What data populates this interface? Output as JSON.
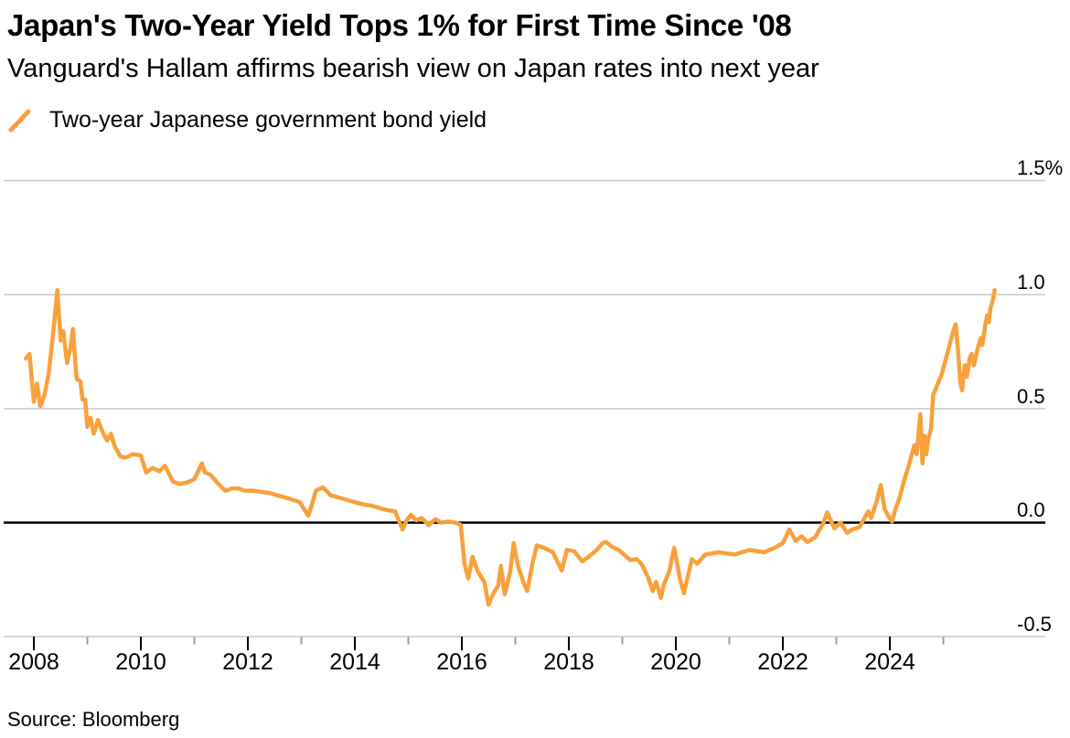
{
  "header": {
    "title": "Japan's Two-Year Yield Tops 1% for First Time Since '08",
    "subtitle": "Vanguard's Hallam affirms bearish view on Japan rates into next year"
  },
  "legend": {
    "label": "Two-year Japanese government bond yield",
    "swatch_icon": "diagonal-line-swatch-icon"
  },
  "source": "Source: Bloomberg",
  "colors": {
    "line": "#F8A13C",
    "grid": "#c9c9c9",
    "zero_line": "#000000",
    "major_tick": "#000000",
    "minor_tick": "#9b9b9b",
    "text": "#000000"
  },
  "chart_data": {
    "type": "line",
    "title": "Japan's Two-Year Yield Tops 1% for First Time Since '08",
    "subtitle": "Vanguard's Hallam affirms bearish view on Japan rates into next year",
    "series_name": "Two-year Japanese government bond yield",
    "unit": "%",
    "grid": "horizontal",
    "legend_position": "top-left",
    "x_range": [
      2007.8,
      2026.1
    ],
    "ylim": [
      -0.75,
      1.6
    ],
    "y_ticks": [
      {
        "value": 1.5,
        "label": "1.5%"
      },
      {
        "value": 1.0,
        "label": "1.0"
      },
      {
        "value": 0.5,
        "label": "0.5"
      },
      {
        "value": 0.0,
        "label": "0.0"
      },
      {
        "value": -0.5,
        "label": "-0.5"
      }
    ],
    "x_ticks_major": [
      {
        "year": 2008,
        "label": "2008"
      },
      {
        "year": 2010,
        "label": "2010"
      },
      {
        "year": 2012,
        "label": "2012"
      },
      {
        "year": 2014,
        "label": "2014"
      },
      {
        "year": 2016,
        "label": "2016"
      },
      {
        "year": 2018,
        "label": "2018"
      },
      {
        "year": 2020,
        "label": "2020"
      },
      {
        "year": 2022,
        "label": "2022"
      },
      {
        "year": 2024,
        "label": "2024"
      }
    ],
    "x_ticks_minor": [
      2009,
      2011,
      2013,
      2015,
      2017,
      2019,
      2021,
      2023,
      2025
    ],
    "zero_line": 0.0,
    "points": [
      [
        2007.85,
        0.72
      ],
      [
        2007.92,
        0.74
      ],
      [
        2008.0,
        0.53
      ],
      [
        2008.06,
        0.61
      ],
      [
        2008.12,
        0.51
      ],
      [
        2008.2,
        0.56
      ],
      [
        2008.28,
        0.66
      ],
      [
        2008.36,
        0.83
      ],
      [
        2008.44,
        1.02
      ],
      [
        2008.5,
        0.8
      ],
      [
        2008.55,
        0.84
      ],
      [
        2008.62,
        0.7
      ],
      [
        2008.68,
        0.76
      ],
      [
        2008.73,
        0.85
      ],
      [
        2008.8,
        0.63
      ],
      [
        2008.87,
        0.62
      ],
      [
        2008.91,
        0.54
      ],
      [
        2008.96,
        0.54
      ],
      [
        2009.0,
        0.42
      ],
      [
        2009.06,
        0.46
      ],
      [
        2009.12,
        0.39
      ],
      [
        2009.2,
        0.45
      ],
      [
        2009.28,
        0.4
      ],
      [
        2009.37,
        0.36
      ],
      [
        2009.44,
        0.39
      ],
      [
        2009.52,
        0.33
      ],
      [
        2009.62,
        0.29
      ],
      [
        2009.72,
        0.285
      ],
      [
        2009.85,
        0.3
      ],
      [
        2010.0,
        0.295
      ],
      [
        2010.1,
        0.22
      ],
      [
        2010.22,
        0.24
      ],
      [
        2010.35,
        0.225
      ],
      [
        2010.45,
        0.25
      ],
      [
        2010.6,
        0.18
      ],
      [
        2010.72,
        0.17
      ],
      [
        2010.85,
        0.175
      ],
      [
        2011.0,
        0.19
      ],
      [
        2011.08,
        0.23
      ],
      [
        2011.14,
        0.26
      ],
      [
        2011.2,
        0.22
      ],
      [
        2011.3,
        0.21
      ],
      [
        2011.45,
        0.17
      ],
      [
        2011.58,
        0.14
      ],
      [
        2011.7,
        0.15
      ],
      [
        2011.82,
        0.15
      ],
      [
        2011.95,
        0.14
      ],
      [
        2012.1,
        0.14
      ],
      [
        2012.25,
        0.135
      ],
      [
        2012.4,
        0.13
      ],
      [
        2012.55,
        0.12
      ],
      [
        2012.7,
        0.11
      ],
      [
        2012.85,
        0.1
      ],
      [
        2012.97,
        0.09
      ],
      [
        2013.05,
        0.06
      ],
      [
        2013.13,
        0.03
      ],
      [
        2013.2,
        0.08
      ],
      [
        2013.27,
        0.14
      ],
      [
        2013.4,
        0.155
      ],
      [
        2013.55,
        0.12
      ],
      [
        2013.7,
        0.11
      ],
      [
        2013.85,
        0.1
      ],
      [
        2014.0,
        0.09
      ],
      [
        2014.15,
        0.08
      ],
      [
        2014.3,
        0.075
      ],
      [
        2014.45,
        0.065
      ],
      [
        2014.6,
        0.055
      ],
      [
        2014.75,
        0.05
      ],
      [
        2014.82,
        0.01
      ],
      [
        2014.89,
        -0.03
      ],
      [
        2014.97,
        0.01
      ],
      [
        2015.05,
        0.035
      ],
      [
        2015.15,
        0.01
      ],
      [
        2015.25,
        0.02
      ],
      [
        2015.38,
        -0.01
      ],
      [
        2015.5,
        0.015
      ],
      [
        2015.62,
        0.0
      ],
      [
        2015.75,
        0.005
      ],
      [
        2015.88,
        0.0
      ],
      [
        2015.98,
        -0.01
      ],
      [
        2016.05,
        -0.18
      ],
      [
        2016.12,
        -0.245
      ],
      [
        2016.2,
        -0.15
      ],
      [
        2016.3,
        -0.215
      ],
      [
        2016.42,
        -0.26
      ],
      [
        2016.5,
        -0.36
      ],
      [
        2016.58,
        -0.315
      ],
      [
        2016.68,
        -0.275
      ],
      [
        2016.73,
        -0.19
      ],
      [
        2016.8,
        -0.315
      ],
      [
        2016.9,
        -0.22
      ],
      [
        2016.97,
        -0.09
      ],
      [
        2017.05,
        -0.19
      ],
      [
        2017.15,
        -0.26
      ],
      [
        2017.22,
        -0.3
      ],
      [
        2017.32,
        -0.18
      ],
      [
        2017.4,
        -0.1
      ],
      [
        2017.53,
        -0.11
      ],
      [
        2017.7,
        -0.13
      ],
      [
        2017.87,
        -0.21
      ],
      [
        2017.96,
        -0.12
      ],
      [
        2018.1,
        -0.125
      ],
      [
        2018.25,
        -0.17
      ],
      [
        2018.42,
        -0.14
      ],
      [
        2018.52,
        -0.12
      ],
      [
        2018.63,
        -0.09
      ],
      [
        2018.7,
        -0.085
      ],
      [
        2018.8,
        -0.105
      ],
      [
        2018.93,
        -0.12
      ],
      [
        2019.03,
        -0.14
      ],
      [
        2019.15,
        -0.165
      ],
      [
        2019.27,
        -0.16
      ],
      [
        2019.37,
        -0.185
      ],
      [
        2019.48,
        -0.24
      ],
      [
        2019.57,
        -0.3
      ],
      [
        2019.63,
        -0.26
      ],
      [
        2019.72,
        -0.33
      ],
      [
        2019.78,
        -0.27
      ],
      [
        2019.88,
        -0.21
      ],
      [
        2019.97,
        -0.11
      ],
      [
        2020.08,
        -0.25
      ],
      [
        2020.15,
        -0.31
      ],
      [
        2020.3,
        -0.16
      ],
      [
        2020.4,
        -0.18
      ],
      [
        2020.55,
        -0.14
      ],
      [
        2020.8,
        -0.13
      ],
      [
        2021.1,
        -0.14
      ],
      [
        2021.38,
        -0.12
      ],
      [
        2021.65,
        -0.13
      ],
      [
        2021.85,
        -0.11
      ],
      [
        2022.0,
        -0.09
      ],
      [
        2022.12,
        -0.03
      ],
      [
        2022.24,
        -0.08
      ],
      [
        2022.35,
        -0.06
      ],
      [
        2022.46,
        -0.085
      ],
      [
        2022.6,
        -0.065
      ],
      [
        2022.75,
        -0.005
      ],
      [
        2022.83,
        0.045
      ],
      [
        2022.96,
        -0.025
      ],
      [
        2023.08,
        0.0
      ],
      [
        2023.2,
        -0.045
      ],
      [
        2023.3,
        -0.03
      ],
      [
        2023.43,
        -0.02
      ],
      [
        2023.55,
        0.03
      ],
      [
        2023.6,
        0.05
      ],
      [
        2023.65,
        0.02
      ],
      [
        2023.75,
        0.09
      ],
      [
        2023.83,
        0.165
      ],
      [
        2023.9,
        0.06
      ],
      [
        2023.97,
        0.03
      ],
      [
        2024.04,
        0.005
      ],
      [
        2024.12,
        0.07
      ],
      [
        2024.17,
        0.1
      ],
      [
        2024.28,
        0.195
      ],
      [
        2024.34,
        0.24
      ],
      [
        2024.4,
        0.29
      ],
      [
        2024.46,
        0.34
      ],
      [
        2024.5,
        0.3
      ],
      [
        2024.57,
        0.475
      ],
      [
        2024.61,
        0.26
      ],
      [
        2024.65,
        0.38
      ],
      [
        2024.68,
        0.3
      ],
      [
        2024.72,
        0.37
      ],
      [
        2024.77,
        0.41
      ],
      [
        2024.81,
        0.56
      ],
      [
        2024.88,
        0.6
      ],
      [
        2024.97,
        0.65
      ],
      [
        2025.05,
        0.72
      ],
      [
        2025.14,
        0.8
      ],
      [
        2025.19,
        0.845
      ],
      [
        2025.23,
        0.87
      ],
      [
        2025.28,
        0.74
      ],
      [
        2025.32,
        0.61
      ],
      [
        2025.35,
        0.58
      ],
      [
        2025.4,
        0.69
      ],
      [
        2025.44,
        0.64
      ],
      [
        2025.49,
        0.72
      ],
      [
        2025.53,
        0.74
      ],
      [
        2025.57,
        0.69
      ],
      [
        2025.65,
        0.77
      ],
      [
        2025.7,
        0.81
      ],
      [
        2025.73,
        0.78
      ],
      [
        2025.78,
        0.86
      ],
      [
        2025.82,
        0.91
      ],
      [
        2025.85,
        0.88
      ],
      [
        2025.88,
        0.94
      ],
      [
        2025.92,
        0.97
      ],
      [
        2025.96,
        1.02
      ]
    ]
  }
}
